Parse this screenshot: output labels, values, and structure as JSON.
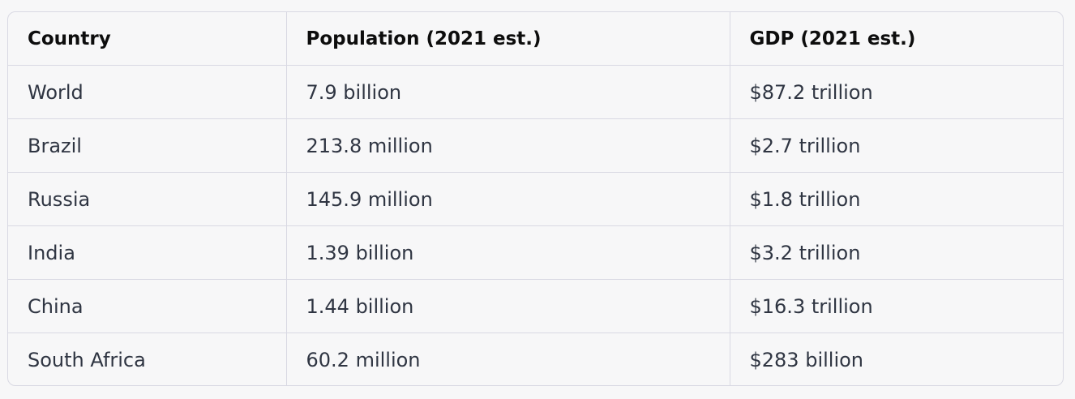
{
  "table": {
    "headers": [
      "Country",
      "Population (2021 est.)",
      "GDP (2021 est.)"
    ],
    "rows": [
      [
        "World",
        "7.9 billion",
        "$87.2 trillion"
      ],
      [
        "Brazil",
        "213.8 million",
        "$2.7 trillion"
      ],
      [
        "Russia",
        "145.9 million",
        "$1.8 trillion"
      ],
      [
        "India",
        "1.39 billion",
        "$3.2 trillion"
      ],
      [
        "China",
        "1.44 billion",
        "$16.3 trillion"
      ],
      [
        "South Africa",
        "60.2 million",
        "$283 billion"
      ]
    ]
  }
}
